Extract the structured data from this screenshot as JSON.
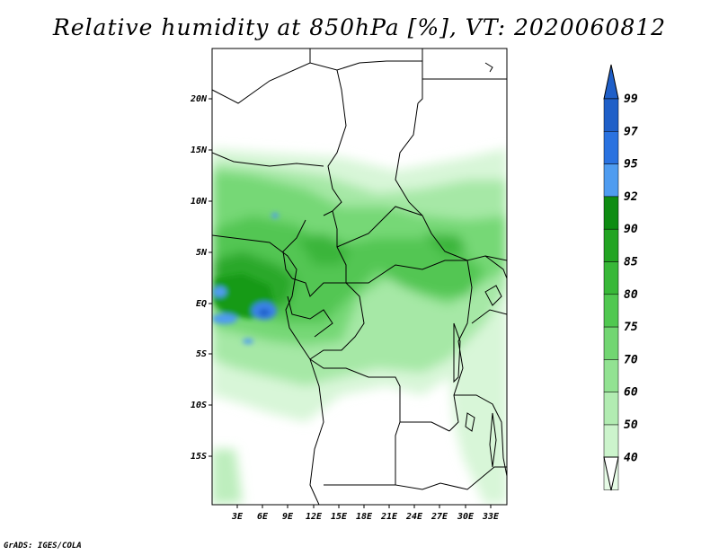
{
  "title": "Relative humidity at 850hPa [%], VT: 2020060812",
  "credit": "GrADS: IGES/COLA",
  "map": {
    "lat_labels": [
      "20N",
      "15N",
      "10N",
      "5N",
      "EQ",
      "5S",
      "10S",
      "15S"
    ],
    "lon_labels": [
      "3E",
      "6E",
      "9E",
      "12E",
      "15E",
      "18E",
      "21E",
      "24E",
      "27E",
      "30E",
      "33E"
    ]
  },
  "colorbar": {
    "levels": [
      "99",
      "97",
      "95",
      "92",
      "90",
      "85",
      "80",
      "75",
      "70",
      "60",
      "50",
      "40"
    ],
    "colors": [
      "#1f5fc8",
      "#2a72e0",
      "#4f9cf0",
      "#0e8c12",
      "#22a422",
      "#38b838",
      "#50c850",
      "#72d672",
      "#92e292",
      "#b2ecb2",
      "#ccf4cc",
      "#e6fbe6"
    ]
  }
}
